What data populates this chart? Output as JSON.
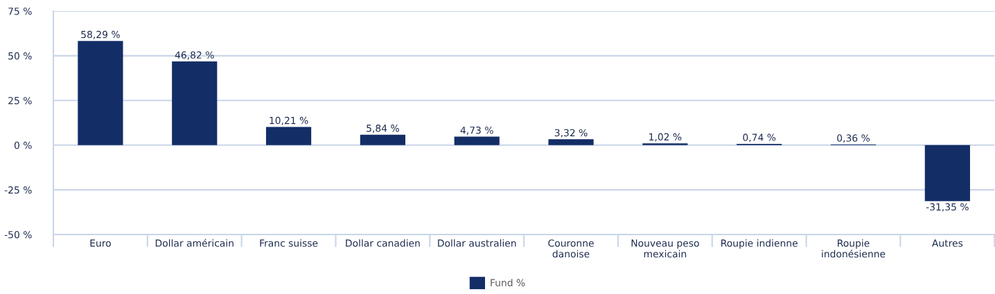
{
  "chart_data": {
    "type": "bar",
    "categories": [
      "Euro",
      "Dollar américain",
      "Franc suisse",
      "Dollar canadien",
      "Dollar australien",
      "Couronne\ndanoise",
      "Nouveau peso\nmexicain",
      "Roupie indienne",
      "Roupie\nindonésienne",
      "Autres"
    ],
    "series": [
      {
        "name": "Fund %",
        "color": "#132d66",
        "values": [
          58.29,
          46.82,
          10.21,
          5.84,
          4.73,
          3.32,
          1.02,
          0.74,
          0.36,
          -31.35
        ],
        "value_labels": [
          "58,29 %",
          "46,82 %",
          "10,21 %",
          "5,84 %",
          "4,73 %",
          "3,32 %",
          "1,02 %",
          "0,74 %",
          "0,36 %",
          "-31,35 %"
        ]
      }
    ],
    "ylim": [
      -50,
      75
    ],
    "yticks": [
      {
        "value": -50,
        "label": "-50 %"
      },
      {
        "value": -25,
        "label": "-25 %"
      },
      {
        "value": 0,
        "label": "0 %"
      },
      {
        "value": 25,
        "label": "25 %"
      },
      {
        "value": 50,
        "label": "50 %"
      },
      {
        "value": 75,
        "label": "75 %"
      }
    ],
    "grid": "y",
    "legend": "bottom"
  }
}
